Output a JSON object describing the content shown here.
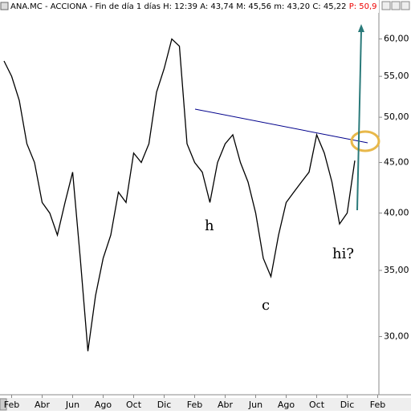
{
  "chart_data": {
    "type": "line",
    "title": "ANA.MC - ACCIONA - Fin de día 1 días",
    "header_stats": [
      "H: 12:39",
      "A: 43,74",
      "M: 45,56",
      "m: 43,20",
      "C: 45,22"
    ],
    "header_price": "P: 50,9",
    "categories": [
      null,
      "Feb",
      null,
      null,
      null,
      "Abr",
      null,
      null,
      null,
      "Jun",
      null,
      null,
      null,
      "Ago",
      null,
      null,
      null,
      "Oct",
      null,
      null,
      null,
      "Dic",
      null,
      null,
      null,
      "Feb",
      null,
      null,
      null,
      "Abr",
      null,
      null,
      null,
      "Jun",
      null,
      null,
      null,
      "Ago",
      null,
      null,
      null,
      "Oct",
      null,
      null,
      null,
      "Dic",
      null,
      null,
      null,
      "Feb"
    ],
    "series": [
      {
        "name": "ANA.MC",
        "color": "#000000",
        "values": [
          57,
          55,
          52,
          47,
          45,
          41,
          40,
          38,
          41,
          44,
          36,
          29,
          33,
          36,
          38,
          42,
          41,
          46,
          45,
          47,
          53,
          56,
          60,
          59,
          47,
          45,
          44,
          41,
          45,
          47,
          48,
          45,
          43,
          40,
          36,
          34.5,
          38,
          41,
          42,
          43,
          44,
          48,
          46,
          43,
          39,
          40,
          45.2,
          null,
          null,
          null
        ]
      }
    ],
    "log_scale": true,
    "ylim": [
      26.2,
      65.7
    ],
    "yticks": [
      {
        "value": 30,
        "label": "30,00"
      },
      {
        "value": 35,
        "label": "35,00"
      },
      {
        "value": 40,
        "label": "40,00"
      },
      {
        "value": 45,
        "label": "45,00"
      },
      {
        "value": 50,
        "label": "50,00"
      },
      {
        "value": 55,
        "label": "55,00"
      },
      {
        "value": 60,
        "label": "60,00"
      }
    ],
    "annotations": [
      "h",
      "c",
      "hi?"
    ]
  }
}
